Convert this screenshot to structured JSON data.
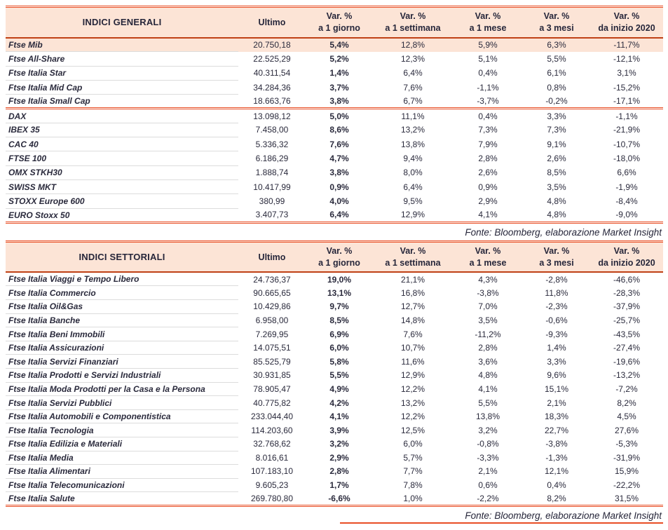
{
  "meta": {
    "colors": {
      "accent_red": "#e84e25",
      "header_bg": "#fce4d6",
      "highlight_row_bg": "#fce4d6",
      "text": "#2a2a3c",
      "row_divider": "#dcdcdc"
    }
  },
  "tables": [
    {
      "title": "INDICI GENERALI",
      "header": {
        "ultimo": "Ultimo",
        "var_cols": [
          [
            "Var. %",
            "a 1 giorno"
          ],
          [
            "Var. %",
            "a 1 settimana"
          ],
          [
            "Var. %",
            "a 1 mese"
          ],
          [
            "Var. %",
            "a 3 mesi"
          ],
          [
            "Var. %",
            "da inizio 2020"
          ]
        ]
      },
      "groups": [
        {
          "rows": [
            {
              "highlight": true,
              "cells": [
                "Ftse Mib",
                "20.750,18",
                "5,4%",
                "12,8%",
                "5,9%",
                "6,3%",
                "-11,7%"
              ]
            },
            {
              "cells": [
                "Ftse All-Share",
                "22.525,29",
                "5,2%",
                "12,3%",
                "5,1%",
                "5,5%",
                "-12,1%"
              ]
            },
            {
              "cells": [
                "Ftse Italia Star",
                "40.311,54",
                "1,4%",
                "6,4%",
                "0,4%",
                "6,1%",
                "3,1%"
              ]
            },
            {
              "cells": [
                "Ftse Italia Mid Cap",
                "34.284,36",
                "3,7%",
                "7,6%",
                "-1,1%",
                "0,8%",
                "-15,2%"
              ]
            },
            {
              "cells": [
                "Ftse Italia Small Cap",
                "18.663,76",
                "3,8%",
                "6,7%",
                "-3,7%",
                "-0,2%",
                "-17,1%"
              ]
            }
          ]
        },
        {
          "rows": [
            {
              "cells": [
                "DAX",
                "13.098,12",
                "5,0%",
                "11,1%",
                "0,4%",
                "3,3%",
                "-1,1%"
              ]
            },
            {
              "cells": [
                "IBEX 35",
                "7.458,00",
                "8,6%",
                "13,2%",
                "7,3%",
                "7,3%",
                "-21,9%"
              ]
            },
            {
              "cells": [
                "CAC 40",
                "5.336,32",
                "7,6%",
                "13,8%",
                "7,9%",
                "9,1%",
                "-10,7%"
              ]
            },
            {
              "cells": [
                "FTSE 100",
                "6.186,29",
                "4,7%",
                "9,4%",
                "2,8%",
                "2,6%",
                "-18,0%"
              ]
            },
            {
              "cells": [
                "OMX STKH30",
                "1.888,74",
                "3,8%",
                "8,0%",
                "2,6%",
                "8,5%",
                "6,6%"
              ]
            },
            {
              "cells": [
                "SWISS MKT",
                "10.417,99",
                "0,9%",
                "6,4%",
                "0,9%",
                "3,5%",
                "-1,9%"
              ]
            },
            {
              "cells": [
                "STOXX Europe 600",
                "380,99",
                "4,0%",
                "9,5%",
                "2,9%",
                "4,8%",
                "-8,4%"
              ]
            },
            {
              "cells": [
                "EURO Stoxx 50",
                "3.407,73",
                "6,4%",
                "12,9%",
                "4,1%",
                "4,8%",
                "-9,0%"
              ]
            }
          ]
        }
      ],
      "fonte": "Fonte: Bloomberg, elaborazione Market Insight"
    },
    {
      "title": "INDICI SETTORIALI",
      "header": {
        "ultimo": "Ultimo",
        "var_cols": [
          [
            "Var. %",
            "a 1 giorno"
          ],
          [
            "Var. %",
            "a 1 settimana"
          ],
          [
            "Var. %",
            "a 1 mese"
          ],
          [
            "Var. %",
            "a 3 mesi"
          ],
          [
            "Var. %",
            "da inizio 2020"
          ]
        ]
      },
      "groups": [
        {
          "rows": [
            {
              "cells": [
                "Ftse Italia Viaggi e Tempo Libero",
                "24.736,37",
                "19,0%",
                "21,1%",
                "4,3%",
                "-2,8%",
                "-46,6%"
              ]
            },
            {
              "cells": [
                "Ftse Italia Commercio",
                "90.665,65",
                "13,1%",
                "16,8%",
                "-3,8%",
                "11,8%",
                "-28,3%"
              ]
            },
            {
              "cells": [
                "Ftse Italia Oil&Gas",
                "10.429,86",
                "9,7%",
                "12,7%",
                "7,0%",
                "-2,3%",
                "-37,9%"
              ]
            },
            {
              "cells": [
                "Ftse Italia Banche",
                "6.958,00",
                "8,5%",
                "14,8%",
                "3,5%",
                "-0,6%",
                "-25,7%"
              ]
            },
            {
              "cells": [
                "Ftse Italia Beni Immobili",
                "7.269,95",
                "6,9%",
                "7,6%",
                "-11,2%",
                "-9,3%",
                "-43,5%"
              ]
            },
            {
              "cells": [
                "Ftse Italia Assicurazioni",
                "14.075,51",
                "6,0%",
                "10,7%",
                "2,8%",
                "1,4%",
                "-27,4%"
              ]
            },
            {
              "cells": [
                "Ftse Italia Servizi Finanziari",
                "85.525,79",
                "5,8%",
                "11,6%",
                "3,6%",
                "3,3%",
                "-19,6%"
              ]
            },
            {
              "cells": [
                "Ftse Italia Prodotti e Servizi Industriali",
                "30.931,85",
                "5,5%",
                "12,9%",
                "4,8%",
                "9,6%",
                "-13,2%"
              ]
            },
            {
              "cells": [
                "Ftse Italia Moda Prodotti per la Casa e la Persona",
                "78.905,47",
                "4,9%",
                "12,2%",
                "4,1%",
                "15,1%",
                "-7,2%"
              ]
            },
            {
              "cells": [
                "Ftse Italia Servizi Pubblici",
                "40.775,82",
                "4,2%",
                "13,2%",
                "5,5%",
                "2,1%",
                "8,2%"
              ]
            },
            {
              "cells": [
                "Ftse Italia Automobili e Componentistica",
                "233.044,40",
                "4,1%",
                "12,2%",
                "13,8%",
                "18,3%",
                "4,5%"
              ]
            },
            {
              "cells": [
                "Ftse Italia Tecnologia",
                "114.203,60",
                "3,9%",
                "12,5%",
                "3,2%",
                "22,7%",
                "27,6%"
              ]
            },
            {
              "cells": [
                "Ftse Italia Edilizia e Materiali",
                "32.768,62",
                "3,2%",
                "6,0%",
                "-0,8%",
                "-3,8%",
                "-5,3%"
              ]
            },
            {
              "cells": [
                "Ftse Italia Media",
                "8.016,61",
                "2,9%",
                "5,7%",
                "-3,3%",
                "-1,3%",
                "-31,9%"
              ]
            },
            {
              "cells": [
                "Ftse Italia Alimentari",
                "107.183,10",
                "2,8%",
                "7,7%",
                "2,1%",
                "12,1%",
                "15,9%"
              ]
            },
            {
              "cells": [
                "Ftse Italia Telecomunicazioni",
                "9.605,23",
                "1,7%",
                "7,8%",
                "0,6%",
                "0,4%",
                "-22,2%"
              ]
            },
            {
              "cells": [
                "Ftse Italia Salute",
                "269.780,80",
                "-6,6%",
                "1,0%",
                "-2,2%",
                "8,2%",
                "31,5%"
              ]
            }
          ]
        }
      ],
      "fonte": "Fonte: Bloomberg, elaborazione Market Insight"
    }
  ]
}
